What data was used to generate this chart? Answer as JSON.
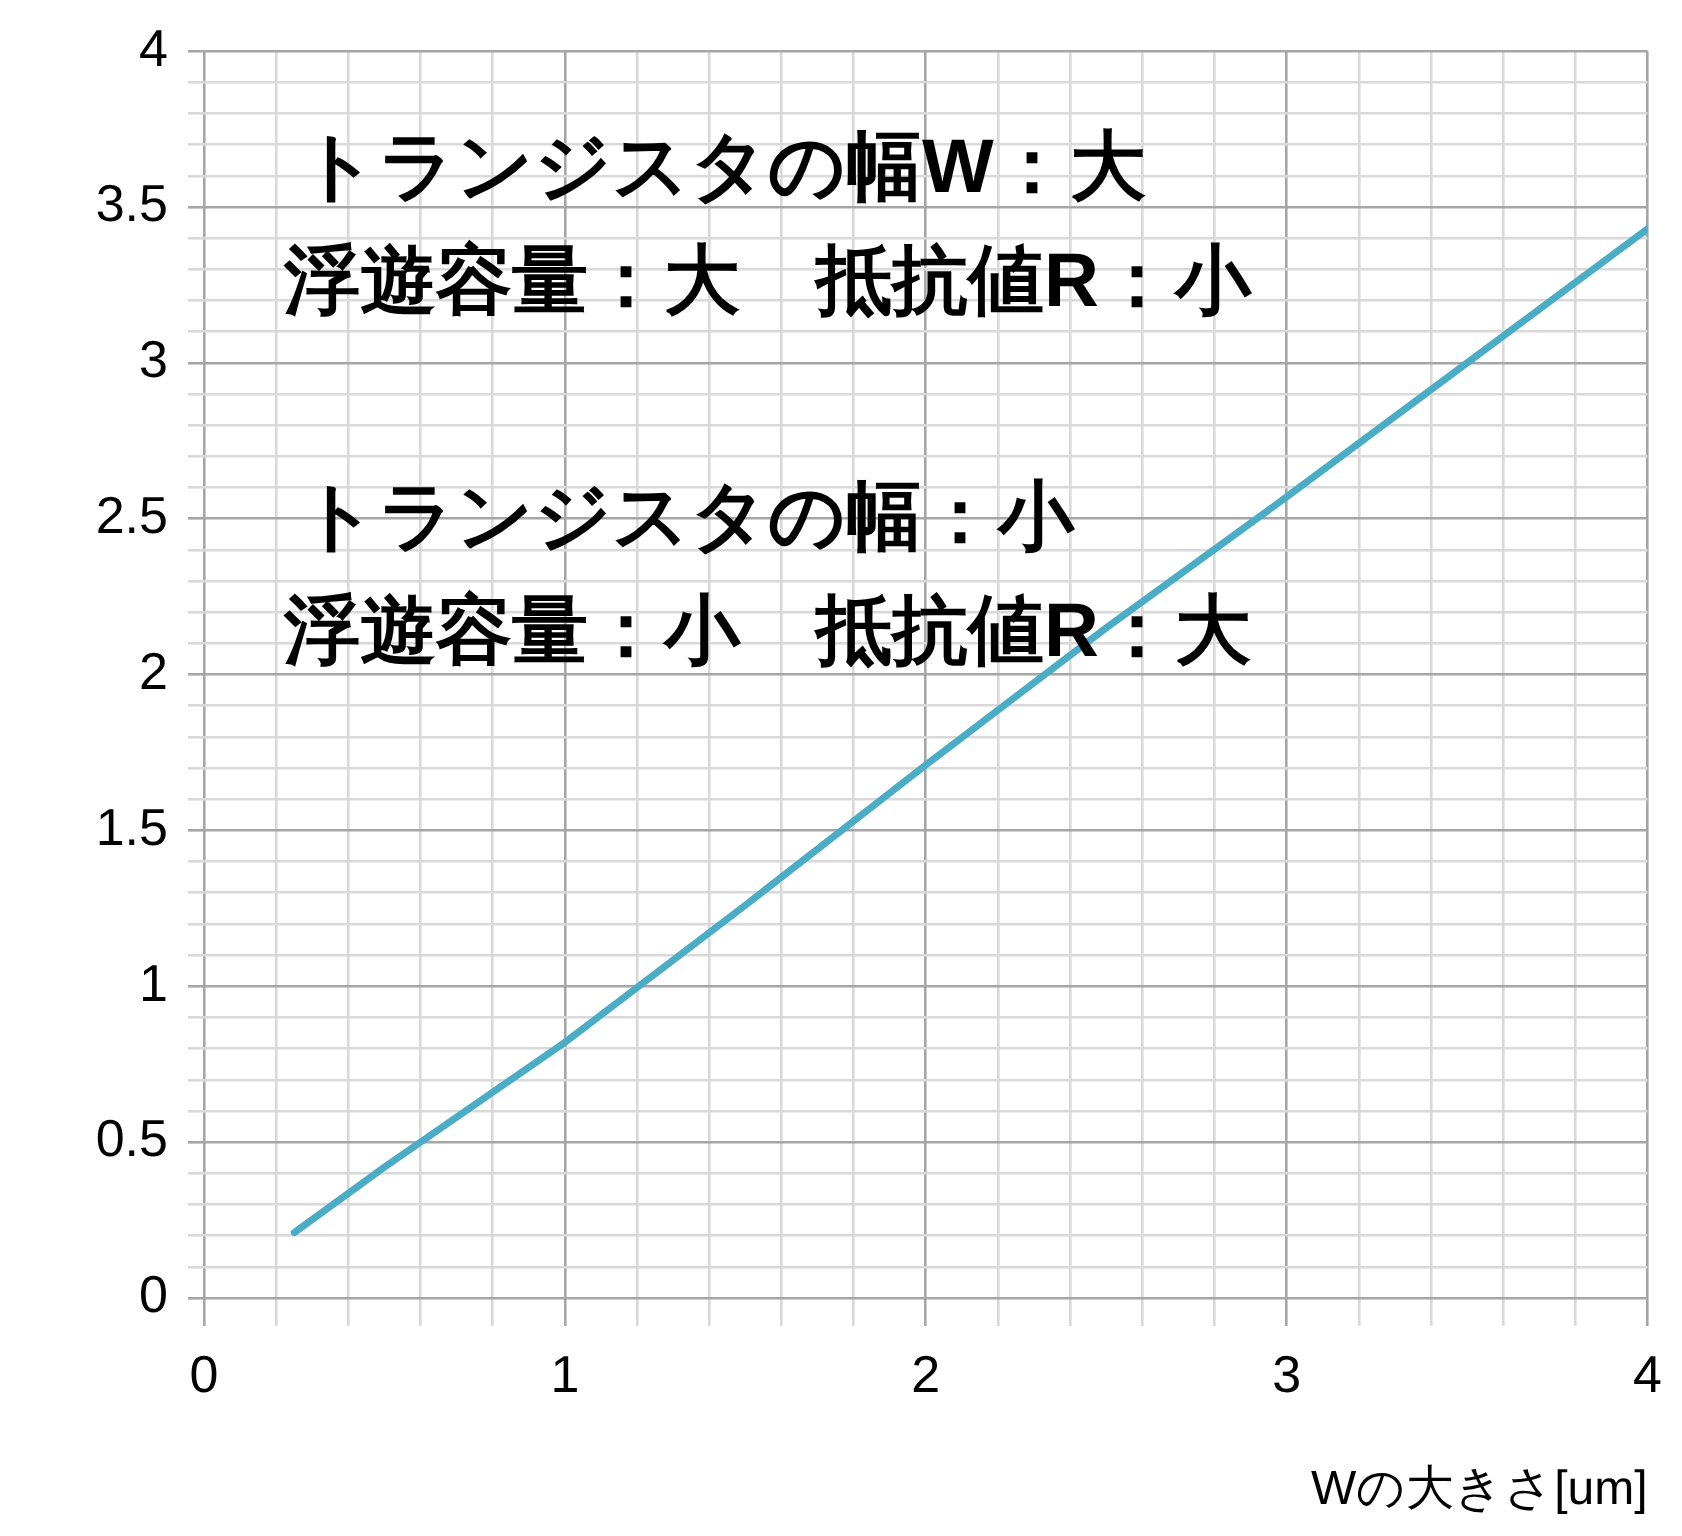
{
  "chart_data": {
    "type": "line",
    "xlabel": "Wの大きさ[um]",
    "x": [
      0.25,
      0.5,
      1,
      1.5,
      2,
      2.5,
      3,
      3.5,
      4
    ],
    "series": [
      {
        "color": "#4bacc6",
        "values": [
          0.21,
          0.42,
          0.82,
          1.26,
          1.71,
          2.15,
          2.57,
          3.0,
          3.43
        ]
      }
    ],
    "xlim": [
      0,
      4
    ],
    "xticks": [
      0,
      {
        "value": 0.2,
        "label": null
      },
      {
        "value": 0.4,
        "label": null
      },
      {
        "value": 0.6,
        "label": null
      },
      {
        "value": 0.8,
        "label": null
      },
      1,
      {
        "value": 1.2,
        "label": null
      },
      {
        "value": 1.4,
        "label": null
      },
      {
        "value": 1.6,
        "label": null
      },
      {
        "value": 1.8,
        "label": null
      },
      2,
      {
        "value": 2.2,
        "label": null
      },
      {
        "value": 2.4,
        "label": null
      },
      {
        "value": 2.6,
        "label": null
      },
      {
        "value": 2.8,
        "label": null
      },
      3,
      {
        "value": 3.2,
        "label": null
      },
      {
        "value": 3.4,
        "label": null
      },
      {
        "value": 3.6,
        "label": null
      },
      {
        "value": 3.8,
        "label": null
      },
      4
    ],
    "ylim": [
      0,
      4
    ],
    "yticks": [
      0,
      {
        "value": 0.1,
        "label": null
      },
      {
        "value": 0.2,
        "label": null
      },
      {
        "value": 0.3,
        "label": null
      },
      {
        "value": 0.4,
        "label": null
      },
      0.5,
      {
        "value": 0.6,
        "label": null
      },
      {
        "value": 0.7,
        "label": null
      },
      {
        "value": 0.8,
        "label": null
      },
      {
        "value": 0.9,
        "label": null
      },
      1,
      {
        "value": 1.1,
        "label": null
      },
      {
        "value": 1.2,
        "label": null
      },
      {
        "value": 1.3,
        "label": null
      },
      {
        "value": 1.4,
        "label": null
      },
      1.5,
      {
        "value": 1.6,
        "label": null
      },
      {
        "value": 1.7,
        "label": null
      },
      {
        "value": 1.8,
        "label": null
      },
      {
        "value": 1.9,
        "label": null
      },
      2,
      {
        "value": 2.1,
        "label": null
      },
      {
        "value": 2.2,
        "label": null
      },
      {
        "value": 2.3,
        "label": null
      },
      {
        "value": 2.4,
        "label": null
      },
      2.5,
      {
        "value": 2.6,
        "label": null
      },
      {
        "value": 2.7,
        "label": null
      },
      {
        "value": 2.8,
        "label": null
      },
      {
        "value": 2.9,
        "label": null
      },
      3,
      {
        "value": 3.1,
        "label": null
      },
      {
        "value": 3.2,
        "label": null
      },
      {
        "value": 3.3,
        "label": null
      },
      {
        "value": 3.4,
        "label": null
      },
      3.5,
      {
        "value": 3.6,
        "label": null
      },
      {
        "value": 3.7,
        "label": null
      },
      {
        "value": 3.8,
        "label": null
      },
      {
        "value": 3.9,
        "label": null
      },
      4
    ],
    "grid": true,
    "legend": false,
    "marker": "none",
    "line_style": "solid",
    "annotations": [
      "トランジスタの幅W：大",
      "浮遊容量：大　抵抗値R：小",
      "トランジスタの幅：小",
      "浮遊容量：小　抵抗値R：大"
    ]
  }
}
